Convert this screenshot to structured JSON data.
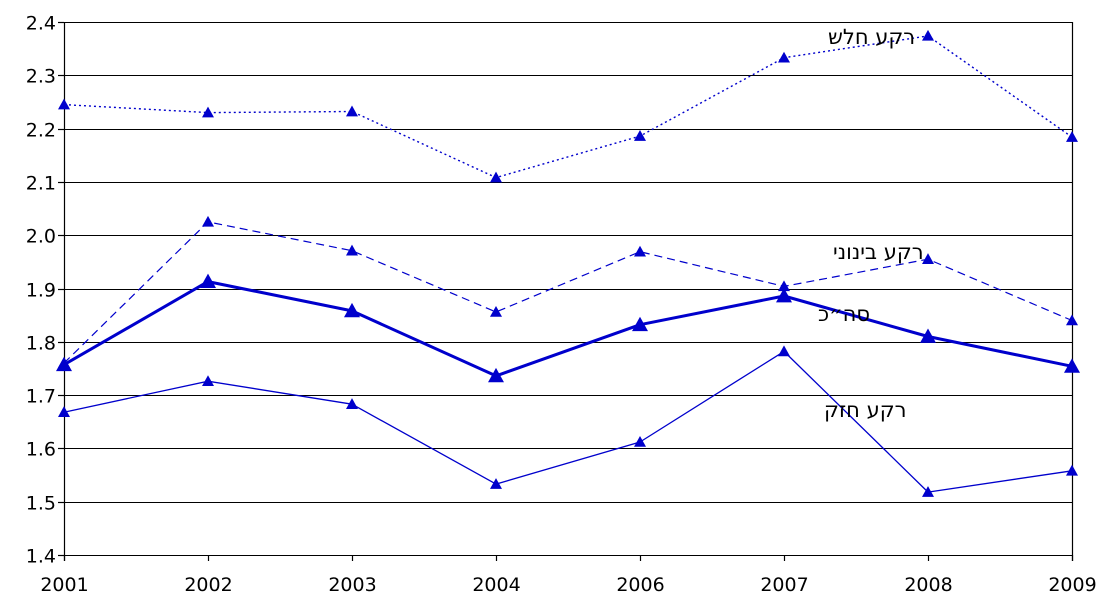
{
  "chart_data": {
    "type": "line",
    "categories": [
      "2001",
      "2002",
      "2003",
      "2004",
      "2006",
      "2007",
      "2008",
      "2009"
    ],
    "ylim": [
      1.4,
      2.4
    ],
    "yticks": [
      1.4,
      1.5,
      1.6,
      1.7,
      1.8,
      1.9,
      2.0,
      2.1,
      2.2,
      2.3,
      2.4
    ],
    "ytick_labels": [
      "1.4",
      "1.5",
      "1.6",
      "1.7",
      "1.8",
      "1.9",
      "2.0",
      "2.1",
      "2.2",
      "2.3",
      "2.4"
    ],
    "grid": true,
    "legend": "none",
    "title": "",
    "xlabel": "",
    "ylabel": "",
    "series": [
      {
        "name": "רקע חלש",
        "style": "dotted",
        "color": "#0000cc",
        "values": [
          2.245,
          2.23,
          2.232,
          2.108,
          2.186,
          2.333,
          2.374,
          2.184
        ]
      },
      {
        "name": "רקע בינוני",
        "style": "dashed",
        "color": "#0000cc",
        "values": [
          1.76,
          2.025,
          1.971,
          1.856,
          1.969,
          1.904,
          1.955,
          1.84
        ]
      },
      {
        "name": "סה״כ",
        "style": "thick",
        "color": "#0000cc",
        "values": [
          1.757,
          1.913,
          1.858,
          1.736,
          1.832,
          1.886,
          1.81,
          1.754
        ]
      },
      {
        "name": "רקע חזק",
        "style": "thin",
        "color": "#0000cc",
        "values": [
          1.668,
          1.726,
          1.683,
          1.533,
          1.612,
          1.782,
          1.518,
          1.558
        ]
      }
    ]
  }
}
